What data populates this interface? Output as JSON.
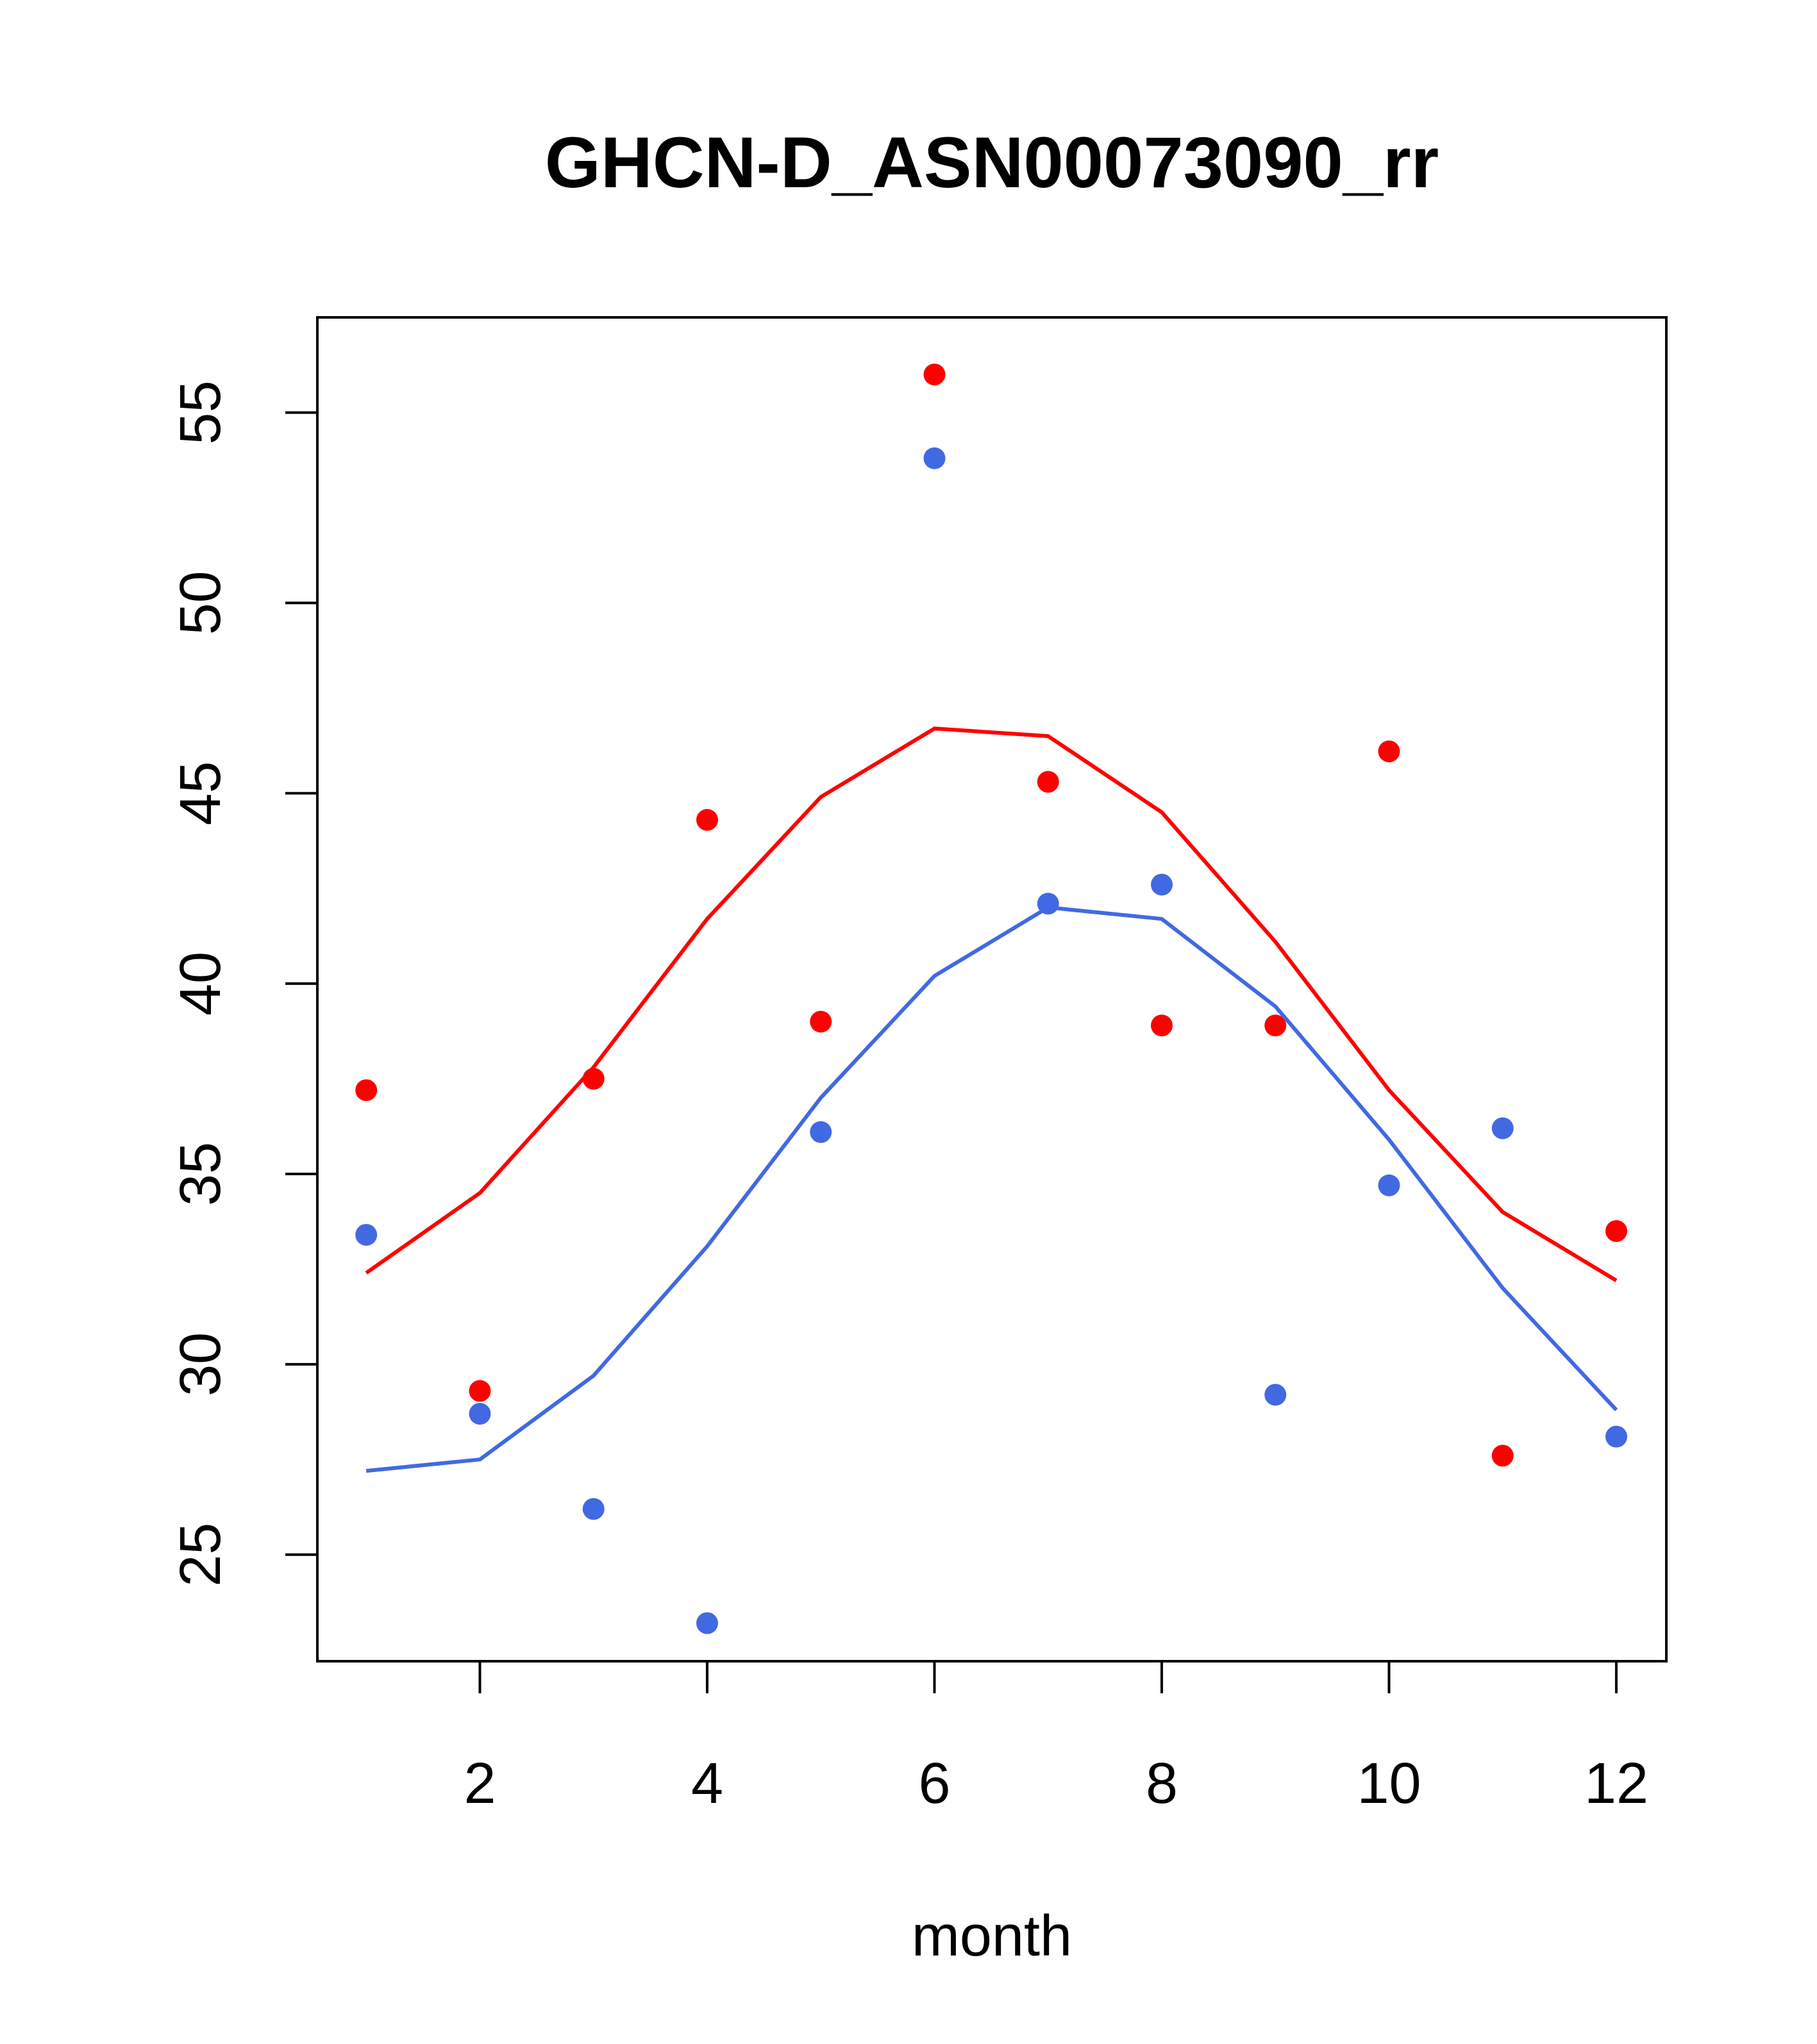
{
  "chart_data": {
    "type": "scatter",
    "title": "GHCN-D_ASN00073090_rr",
    "xlabel": "month",
    "ylabel": "",
    "xlim": [
      0.57,
      12.44
    ],
    "ylim": [
      22.2,
      57.5
    ],
    "x_ticks": [
      2,
      4,
      6,
      8,
      10,
      12
    ],
    "y_ticks": [
      25,
      30,
      35,
      40,
      45,
      50,
      55
    ],
    "grid": false,
    "legend": "none",
    "series": [
      {
        "color": "#ff0000",
        "points_x": [
          1,
          2,
          3,
          4,
          5,
          6,
          7,
          8,
          9,
          10,
          11,
          12
        ],
        "points_y": [
          37.2,
          29.3,
          37.5,
          44.3,
          39.0,
          56.0,
          45.3,
          38.9,
          38.9,
          46.1,
          27.6,
          33.5
        ],
        "line_x": [
          1,
          2,
          3,
          4,
          5,
          6,
          7,
          8,
          9,
          10,
          11,
          12
        ],
        "line_y": [
          32.4,
          34.5,
          37.8,
          41.7,
          44.9,
          46.7,
          46.5,
          44.5,
          41.1,
          37.2,
          34.0,
          32.2
        ]
      },
      {
        "color": "#4169e1",
        "points_x": [
          1,
          2,
          3,
          4,
          5,
          6,
          7,
          8,
          9,
          10,
          11,
          12
        ],
        "points_y": [
          33.4,
          28.7,
          26.2,
          23.2,
          36.1,
          53.8,
          42.1,
          42.6,
          29.2,
          34.7,
          36.2,
          28.1
        ],
        "line_x": [
          1,
          2,
          3,
          4,
          5,
          6,
          7,
          8,
          9,
          10,
          11,
          12
        ],
        "line_y": [
          27.2,
          27.5,
          29.7,
          33.1,
          37.0,
          40.2,
          42.0,
          41.7,
          39.4,
          35.9,
          32.0,
          28.8
        ]
      }
    ]
  }
}
